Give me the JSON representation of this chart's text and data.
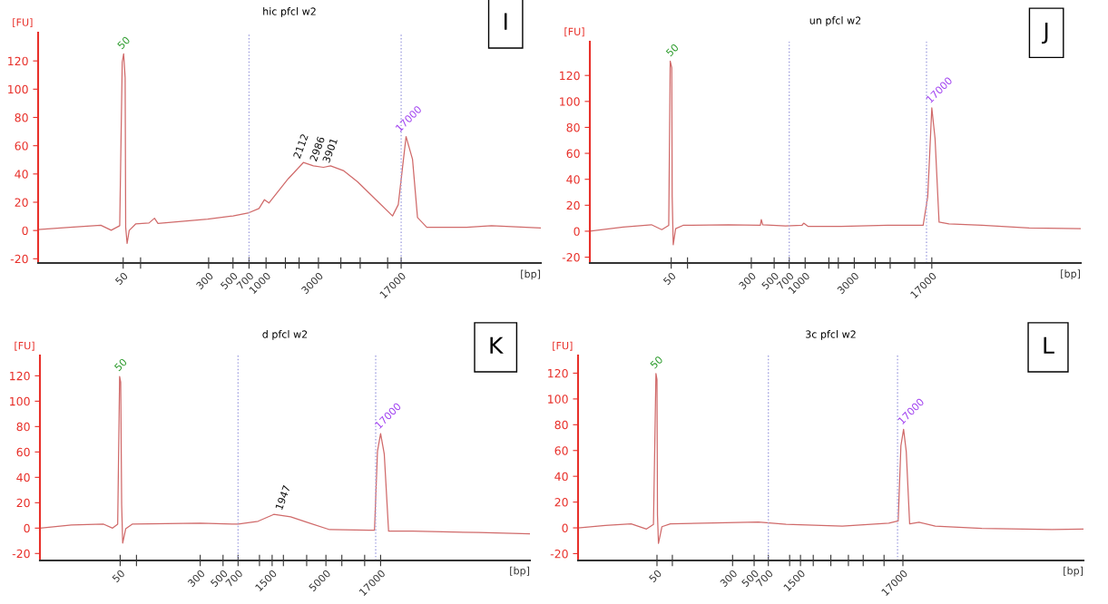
{
  "chart_data": [
    {
      "type": "line",
      "log": "x",
      "title": "hic pfcl w2",
      "xlabel": "[bp]",
      "ylabel": "[FU]",
      "xlim": [
        8.4,
        318000
      ],
      "ylim": [
        -23,
        140
      ],
      "xticks": [
        50,
        {
          "value": 72,
          "label": null
        },
        300,
        500,
        700,
        1000,
        {
          "value": 1500,
          "label": null
        },
        {
          "value": 2000,
          "label": null
        },
        3000,
        {
          "value": 4800,
          "label": null
        },
        {
          "value": 7200,
          "label": null
        },
        {
          "value": 12800,
          "label": null
        },
        17000
      ],
      "yticks": [
        -20,
        0,
        20,
        40,
        60,
        80,
        100,
        120
      ],
      "grid": false,
      "legend": false,
      "series": [
        {
          "color": "#d06a6a",
          "x": [
            8.4,
            16.4,
            31.3,
            38.9,
            46.5,
            49.0,
            50.5,
            52.1,
            52.7,
            54.3,
            56.7,
            64.9,
            85.9,
            96.4,
            103.7,
            294,
            500,
            700,
            863,
            967,
            1062,
            1595,
            2188,
            2700,
            3330,
            3868,
            5060,
            6820,
            10370,
            14190,
            16000,
            18840,
            21570,
            23950,
            29100,
            67100,
            113000,
            318000
          ],
          "values": [
            0.7,
            2.3,
            3.7,
            0.2,
            3.4,
            119,
            125,
            108,
            2.3,
            -9.2,
            0,
            4.6,
            5.3,
            8.7,
            5,
            8,
            10.3,
            12.6,
            15.6,
            21.8,
            19.5,
            36.7,
            48.1,
            45.8,
            44.7,
            45.8,
            42.4,
            34.4,
            20.6,
            10.3,
            18.3,
            66.4,
            50.4,
            9.2,
            2.3,
            2.3,
            3.4,
            1.8
          ]
        }
      ],
      "ref_lines": [
        {
          "axis": "x",
          "value": 700,
          "color": "#a0a0e0",
          "line_style": "dotted"
        },
        {
          "axis": "x",
          "value": 17000,
          "color": "#a0a0e0",
          "line_style": "dotted"
        }
      ],
      "annotations": [
        {
          "text": "50",
          "x": 50,
          "y": 125
        },
        {
          "text": "17000",
          "x": 17000,
          "y": 66.4
        },
        {
          "text": "2112",
          "x": 2112,
          "y": 48
        },
        {
          "text": "2986",
          "x": 2986,
          "y": 46
        },
        {
          "text": "3901",
          "x": 3901,
          "y": 45
        },
        "I"
      ]
    },
    {
      "type": "line",
      "log": "x",
      "title": "un pfcl w2",
      "xlabel": "[bp]",
      "ylabel": "[FU]",
      "xlim": [
        8.1,
        476000
      ],
      "ylim": [
        -24.5,
        146
      ],
      "xticks": [
        50,
        {
          "value": 72,
          "label": null
        },
        300,
        500,
        700,
        1000,
        {
          "value": 1700,
          "label": null
        },
        {
          "value": 2100,
          "label": null
        },
        3000,
        {
          "value": 4800,
          "label": null
        },
        {
          "value": 6700,
          "label": null
        },
        {
          "value": 11600,
          "label": null
        },
        17000
      ],
      "yticks": [
        -20,
        0,
        20,
        40,
        60,
        80,
        100,
        120
      ],
      "grid": false,
      "legend": false,
      "series": [
        {
          "color": "#d06a6a",
          "x": [
            8.1,
            17.1,
            32.1,
            40.5,
            47.3,
            48.9,
            50.6,
            51.1,
            52.3,
            55.2,
            65.2,
            180,
            367,
            375,
            387,
            645,
            931,
            968,
            1072,
            2240,
            6290,
            14000,
            15530,
            17000,
            18280,
            20000,
            24950,
            52400,
            150000,
            476000
          ],
          "values": [
            0,
            3.2,
            5,
            1.2,
            4.5,
            131,
            126,
            26.8,
            -10.4,
            2,
            4.5,
            5,
            4.5,
            8.9,
            5,
            4,
            4.5,
            6.2,
            3.7,
            3.7,
            4.5,
            4.5,
            26.8,
            95,
            71.4,
            7,
            5.7,
            4.5,
            2.5,
            2
          ]
        }
      ],
      "ref_lines": [
        {
          "axis": "x",
          "value": 700,
          "color": "#a0a0e0",
          "line_style": "dotted"
        },
        {
          "axis": "x",
          "value": 15100,
          "color": "#a0a0e0",
          "line_style": "dotted"
        }
      ],
      "annotations": [
        {
          "text": "50",
          "x": 50.6,
          "y": 131
        },
        {
          "text": "17000",
          "x": 17000,
          "y": 95
        },
        "J"
      ]
    },
    {
      "type": "line",
      "log": "x",
      "title": "d pfcl w2",
      "xlabel": "[bp]",
      "ylabel": "[FU]",
      "xlim": [
        8.3,
        481000
      ],
      "ylim": [
        -25.5,
        136
      ],
      "xticks": [
        50,
        {
          "value": 72,
          "label": null
        },
        300,
        500,
        700,
        {
          "value": 1130,
          "label": null
        },
        1500,
        {
          "value": 1930,
          "label": null
        },
        {
          "value": 3250,
          "label": null
        },
        5000,
        {
          "value": 7140,
          "label": null
        },
        {
          "value": 11900,
          "label": null
        },
        17000
      ],
      "yticks": [
        -20,
        0,
        20,
        40,
        60,
        80,
        100,
        120
      ],
      "grid": false,
      "legend": false,
      "series": [
        {
          "color": "#d06a6a",
          "x": [
            8.3,
            16.8,
            34.5,
            42.2,
            47.3,
            49.4,
            50.6,
            51.7,
            52.9,
            56.6,
            65.5,
            300,
            700,
            1094,
            1555,
            2270,
            3370,
            5430,
            13100,
            14830,
            15860,
            17000,
            18450,
            20330,
            34750,
            151400,
            481000
          ],
          "values": [
            0,
            2.4,
            3.1,
            0,
            3.1,
            119.5,
            115,
            18.4,
            -11.8,
            -0.5,
            3.1,
            3.8,
            3.1,
            5.4,
            10.8,
            8.9,
            4.2,
            -1.2,
            -1.6,
            -1.6,
            60.7,
            74.4,
            58.4,
            -2.4,
            -2.4,
            -3.5,
            -4.5
          ]
        }
      ],
      "ref_lines": [
        {
          "axis": "x",
          "value": 700,
          "color": "#a0a0e0",
          "line_style": "dotted"
        },
        {
          "axis": "x",
          "value": 15230,
          "color": "#a0a0e0",
          "line_style": "dotted"
        }
      ],
      "annotations": [
        {
          "text": "50",
          "x": 50,
          "y": 120
        },
        {
          "text": "17000",
          "x": 17000,
          "y": 74.4
        },
        {
          "text": "1947",
          "x": 1947,
          "y": 11
        },
        "K"
      ]
    },
    {
      "type": "line",
      "log": "x",
      "title": "3c pfcl w2",
      "xlabel": "[bp]",
      "ylabel": "[FU]",
      "xlim": [
        7.7,
        1228000
      ],
      "ylim": [
        -25.3,
        133.7
      ],
      "xticks": [
        50,
        {
          "value": 72,
          "label": null
        },
        300,
        500,
        700,
        {
          "value": 1160,
          "label": null
        },
        1500,
        {
          "value": 2030,
          "label": null
        },
        {
          "value": 3080,
          "label": null
        },
        {
          "value": 4670,
          "label": null
        },
        {
          "value": 6630,
          "label": null
        },
        {
          "value": 10870,
          "label": null
        },
        17000
      ],
      "yticks": [
        -20,
        0,
        20,
        40,
        60,
        80,
        100,
        120
      ],
      "grid": false,
      "legend": false,
      "series": [
        {
          "color": "#d06a6a",
          "x": [
            7.7,
            14.7,
            27.1,
            39.0,
            46.0,
            48.8,
            50,
            50.6,
            51.8,
            56.2,
            68.7,
            254,
            552,
            1067,
            4040,
            12160,
            15200,
            16210,
            17270,
            18400,
            19940,
            24940,
            36580,
            110200,
            580000,
            1228000
          ],
          "values": [
            0,
            1.8,
            3.1,
            -0.9,
            2.7,
            119.8,
            115,
            9.9,
            -12.1,
            0.9,
            3.1,
            4,
            4.5,
            2.7,
            1.3,
            3.6,
            5.4,
            63.7,
            76.5,
            59.2,
            3.1,
            4.3,
            1.3,
            -0.4,
            -1.3,
            -0.9
          ]
        }
      ],
      "ref_lines": [
        {
          "axis": "x",
          "value": 700,
          "color": "#a0a0e0",
          "line_style": "dotted"
        },
        {
          "axis": "x",
          "value": 14970,
          "color": "#a0a0e0",
          "line_style": "dotted"
        }
      ],
      "annotations": [
        {
          "text": "50",
          "x": 48.8,
          "y": 119.8
        },
        {
          "text": "17000",
          "x": 17270,
          "y": 76.5
        },
        "L"
      ]
    }
  ]
}
